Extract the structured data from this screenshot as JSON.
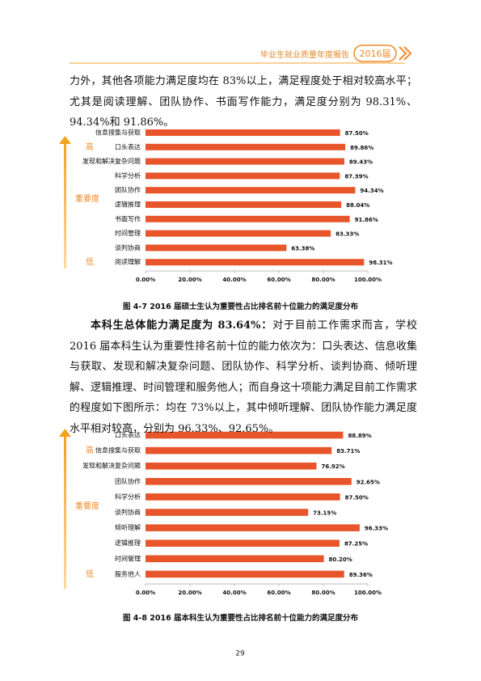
{
  "header": {
    "title": "毕业生就业质量年度报告",
    "badge": "2016届"
  },
  "paragraphs": [
    {
      "text": "力外，其他各项能力满足度均在 83%以上，满足程度处于相对较高水平；尤其是阅读理解、团队协作、书面写作能力，满足度分别为 98.31%、94.34%和 91.86%。"
    },
    {
      "lead": "本科生总体能力满足度为 83.64%：",
      "text": "对于目前工作需求而言，学校 2016 届本科生认为重要性排名前十位的能力依次为：口头表达、信息收集与获取、发现和解决复杂问题、团队协作、科学分析、谈判协商、倾听理解、逻辑推理、时间管理和服务他人；而自身这十项能力满足目前工作需求的程度如下图所示：均在 73%以上，其中倾听理解、团队协作能力满足度水平相对较高，分别为 96.33%、92.65%。"
    }
  ],
  "chart_data": [
    {
      "type": "bar",
      "orientation": "horizontal",
      "color": "#e8552b",
      "caption": "图 4-7   2016 届硕士生认为重要性占比排名前十位能力的满足度分布",
      "side_labels": {
        "high": "高",
        "middle": "重要度",
        "low": "低"
      },
      "categories": [
        "信息搜集与获取",
        "口头表达",
        "发现和解决复杂问题",
        "科学分析",
        "团队协作",
        "逻辑推理",
        "书面写作",
        "时间管理",
        "谈判协商",
        "阅读理解"
      ],
      "values": [
        87.5,
        89.86,
        89.43,
        87.39,
        94.34,
        88.04,
        91.86,
        83.33,
        63.38,
        98.31
      ],
      "value_labels": [
        "87.50%",
        "89.86%",
        "89.43%",
        "87.39%",
        "94.34%",
        "88.04%",
        "91.86%",
        "83.33%",
        "63.38%",
        "98.31%"
      ],
      "xlim": [
        0,
        100
      ],
      "xticks": [
        {
          "value": 0,
          "label": "0.00%"
        },
        {
          "value": 20,
          "label": "20.00%"
        },
        {
          "value": 40,
          "label": "40.00%"
        },
        {
          "value": 60,
          "label": "60.00%"
        },
        {
          "value": 80,
          "label": "80.00%"
        },
        {
          "value": 100,
          "label": "100.00%"
        }
      ]
    },
    {
      "type": "bar",
      "orientation": "horizontal",
      "color": "#e8552b",
      "caption": "图 4-8   2016 届本科生认为重要性占比排名前十位能力的满足度分布",
      "side_labels": {
        "high": "高",
        "middle": "重要度",
        "low": "低"
      },
      "categories": [
        "口头表达",
        "信息搜集与获取",
        "发现和解决复杂问题",
        "团队协作",
        "科学分析",
        "谈判协商",
        "倾听理解",
        "逻辑推理",
        "时间管理",
        "服务他人"
      ],
      "values": [
        88.89,
        83.71,
        76.92,
        92.65,
        87.5,
        73.15,
        96.33,
        87.25,
        80.2,
        89.36
      ],
      "value_labels": [
        "88.89%",
        "83.71%",
        "76.92%",
        "92.65%",
        "87.50%",
        "73.15%",
        "96.33%",
        "87.25%",
        "80.20%",
        "89.36%"
      ],
      "xlim": [
        0,
        100
      ],
      "xticks": [
        {
          "value": 0,
          "label": "0.00%"
        },
        {
          "value": 20,
          "label": "20.00%"
        },
        {
          "value": 40,
          "label": "40.00%"
        },
        {
          "value": 60,
          "label": "60.00%"
        },
        {
          "value": 80,
          "label": "80.00%"
        },
        {
          "value": 100,
          "label": "100.00%"
        }
      ]
    }
  ],
  "page_number": "29"
}
